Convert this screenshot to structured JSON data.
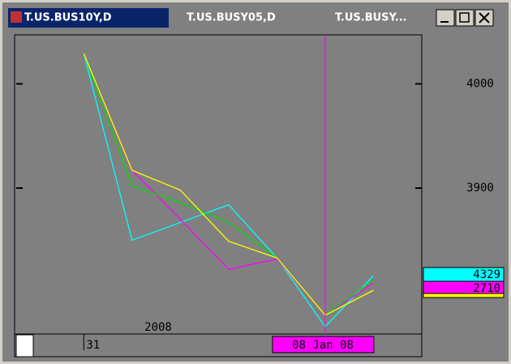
{
  "window": {
    "tabs": [
      "T.US.BUS10Y,D",
      "T.US.BUSY05,D",
      "T.US.BUSY..."
    ]
  },
  "chart_data": {
    "type": "line",
    "x": [
      0,
      1,
      2,
      3,
      4,
      5,
      6
    ],
    "xlim": [
      -1.4,
      7
    ],
    "xticks": [
      {
        "value": 0,
        "label": "31"
      }
    ],
    "cursor": {
      "x": 5,
      "label": "08 Jan 08",
      "color": "#ff00ff"
    },
    "year_label": "2008",
    "ylim": [
      3760,
      4047
    ],
    "yticks": [
      3900,
      4000
    ],
    "series": [
      {
        "color": "#00ffff",
        "values": [
          4029,
          3850,
          3867,
          3884,
          3833,
          3767,
          3816
        ]
      },
      {
        "color": "#ff00ff",
        "values": [
          4029,
          3917,
          3870,
          3822,
          3832,
          3778,
          3809
        ]
      },
      {
        "color": "#00dd00",
        "values": [
          4029,
          3902,
          3886,
          3867,
          3833,
          3778,
          3812
        ]
      },
      {
        "color": "#ffff00",
        "values": [
          4029,
          3917,
          3898,
          3849,
          3833,
          3778,
          3802
        ]
      }
    ],
    "value_boxes": [
      {
        "label": "4329",
        "color": "#00ffff"
      },
      {
        "label": "2710",
        "color": "#ff00ff"
      }
    ]
  }
}
